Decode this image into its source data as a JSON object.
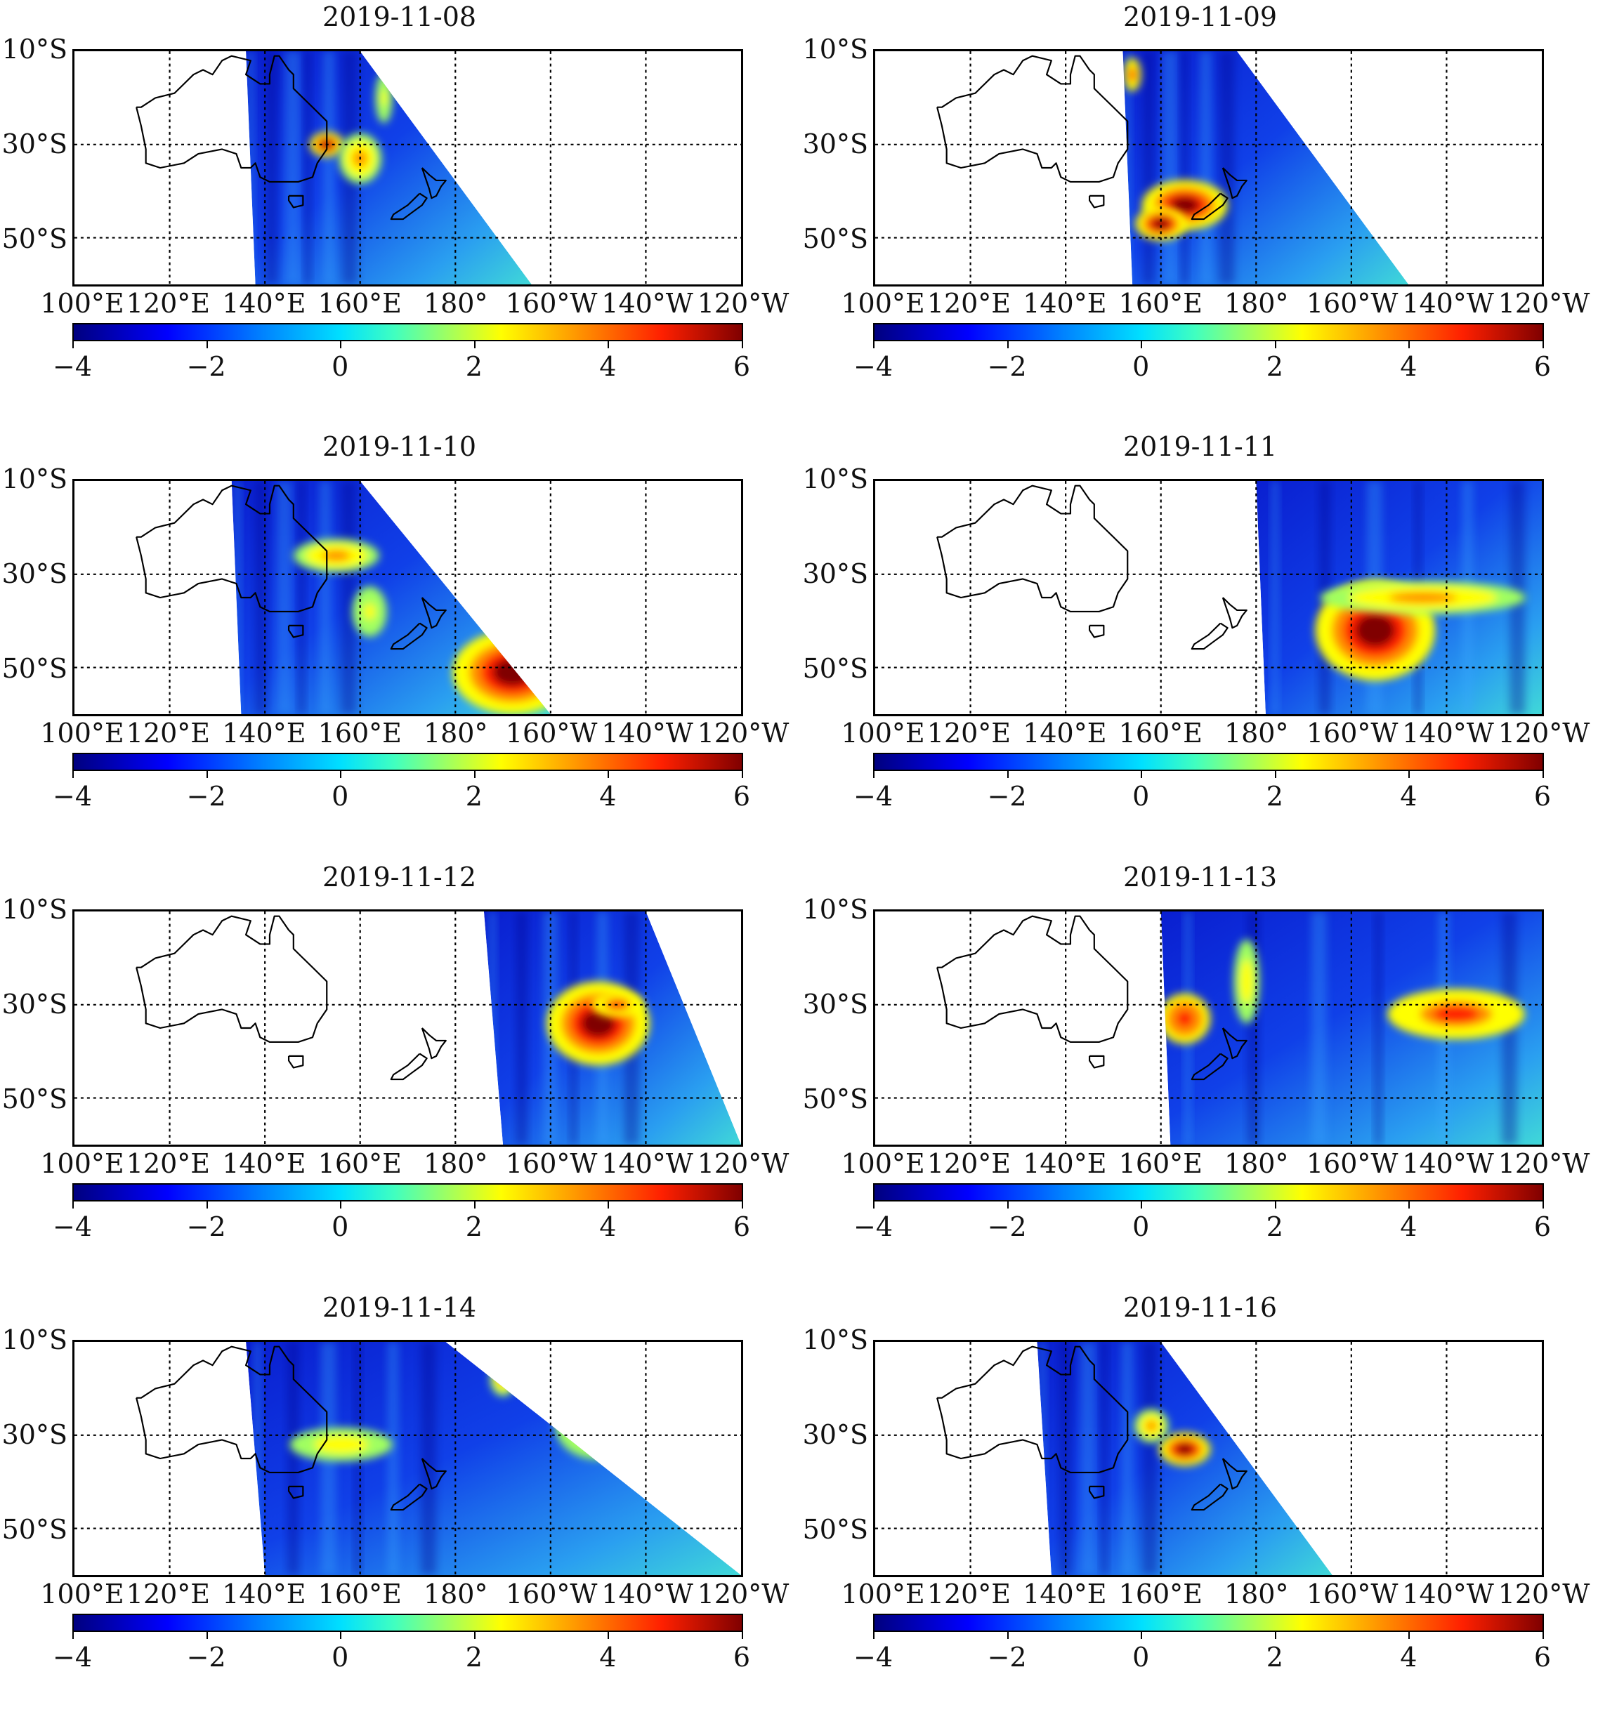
{
  "lat_labels": [
    "10°S",
    "30°S",
    "50°S"
  ],
  "lon_labels": [
    "100°E",
    "120°E",
    "140°E",
    "160°E",
    "180°",
    "160°W",
    "140°W",
    "120°W"
  ],
  "colorbar": {
    "ticks": [
      "−4",
      "−2",
      "0",
      "2",
      "4",
      "6"
    ],
    "colormap": "jet",
    "range": [
      -4,
      6
    ]
  },
  "colors": {
    "low": "#00007f",
    "mid": "#40ffc0",
    "high": "#800000",
    "coast": "#000000"
  },
  "panels": [
    {
      "id": "p1",
      "title": "2019-11-08"
    },
    {
      "id": "p2",
      "title": "2019-11-09"
    },
    {
      "id": "p3",
      "title": "2019-11-10"
    },
    {
      "id": "p4",
      "title": "2019-11-11"
    },
    {
      "id": "p5",
      "title": "2019-11-12"
    },
    {
      "id": "p6",
      "title": "2019-11-13"
    },
    {
      "id": "p7",
      "title": "2019-11-14"
    },
    {
      "id": "p8",
      "title": "2019-11-16"
    }
  ]
}
